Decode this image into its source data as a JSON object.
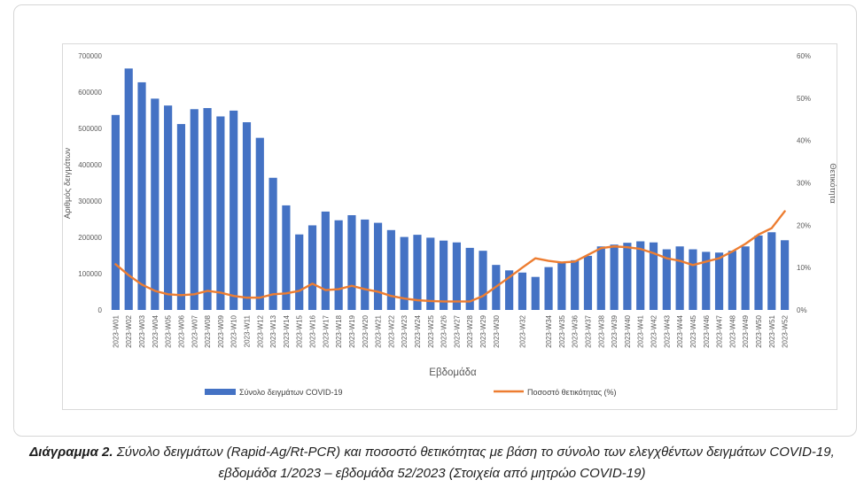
{
  "caption": {
    "label": "Διάγραμμα 2.",
    "text": "Σύνολο δειγμάτων (Rapid-Ag/Rt-PCR) και ποσοστό θετικότητας με βάση το σύνολο των ελεγχθέντων δειγμάτων COVID-19, εβδομάδα 1/2023 – εβδομάδα 52/2023 (Στοιχεία από μητρώο COVID-19)"
  },
  "chart_data": {
    "type": "bar",
    "title": "",
    "xlabel": "Εβδομάδα",
    "ylabel": "Αριθμός δειγμάτων",
    "y2label": "Θετικότητα",
    "ylim": [
      0,
      700000
    ],
    "yticks": [
      "0",
      "100000",
      "200000",
      "300000",
      "400000",
      "500000",
      "600000",
      "700000"
    ],
    "y2lim": [
      0,
      60
    ],
    "y2ticks": [
      "0%",
      "10%",
      "20%",
      "30%",
      "40%",
      "50%",
      "60%"
    ],
    "grid": false,
    "legend_position": "bottom",
    "categories": [
      "2023-W01",
      "2023-W02",
      "2023-W03",
      "2023-W04",
      "2023-W05",
      "2023-W06",
      "2023-W07",
      "2023-W08",
      "2023-W09",
      "2023-W10",
      "2023-W11",
      "2023-W12",
      "2023-W13",
      "2023-W14",
      "2023-W15",
      "2023-W16",
      "2023-W17",
      "2023-W18",
      "2023-W19",
      "2023-W20",
      "2023-W21",
      "2023-W22",
      "2023-W23",
      "2023-W24",
      "2023-W25",
      "2023-W26",
      "2023-W27",
      "2023-W28",
      "2023-W29",
      "2023-W30",
      "2023-W31",
      "2023-W32",
      "2023-W33",
      "2023-W34",
      "2023-W35",
      "2023-W36",
      "2023-W37",
      "2023-W38",
      "2023-W39",
      "2023-W40",
      "2023-W41",
      "2023-W42",
      "2023-W43",
      "2023-W44",
      "2023-W45",
      "2023-W46",
      "2023-W47",
      "2023-W48",
      "2023-W49",
      "2023-W50",
      "2023-W51",
      "2023-W52"
    ],
    "xticks": [
      "2023-W01",
      "2023-W02",
      "2023-W03",
      "2023-W04",
      "2023-W05",
      "2023-W06",
      "2023-W07",
      "2023-W08",
      "2023-W09",
      "2023-W10",
      "2023-W11",
      "2023-W12",
      "2023-W13",
      "2023-W14",
      "2023-W15",
      "2023-W16",
      "2023-W17",
      "2023-W18",
      "2023-W19",
      "2023-W20",
      "2023-W21",
      "2023-W22",
      "2023-W23",
      "2023-W24",
      "2023-W25",
      "2023-W26",
      "2023-W27",
      "2023-W28",
      "2023-W29",
      "2023-W30",
      "2023-W32",
      "2023-W34",
      "2023-W35",
      "2023-W36",
      "2023-W37",
      "2023-W38",
      "2023-W39",
      "2023-W40",
      "2023-W41",
      "2023-W42",
      "2023-W43",
      "2023-W44",
      "2023-W45",
      "2023-W46",
      "2023-W47",
      "2023-W48",
      "2023-W49",
      "2023-W50",
      "2023-W51",
      "2023-W52"
    ],
    "series": [
      {
        "name": "Σύνολο δειγμάτων COVID-19",
        "type": "bar",
        "axis": "left",
        "color": "#4472c4",
        "values": [
          537000,
          665000,
          627000,
          582000,
          563000,
          512000,
          553000,
          556000,
          533000,
          549000,
          517000,
          474000,
          364000,
          288000,
          208000,
          233000,
          271000,
          247000,
          261000,
          249000,
          240000,
          220000,
          201000,
          207000,
          199000,
          191000,
          186000,
          171000,
          163000,
          124000,
          109000,
          103000,
          91000,
          118000,
          133000,
          137000,
          149000,
          175000,
          180000,
          185000,
          189000,
          186000,
          167000,
          175000,
          167000,
          160000,
          158000,
          163000,
          175000,
          205000,
          214000,
          192000
        ]
      },
      {
        "name": "Ποσοστό θετικότητας (%)",
        "type": "line",
        "axis": "right",
        "color": "#ed7d31",
        "values": [
          10.8,
          8.2,
          6.0,
          4.5,
          3.7,
          3.5,
          3.7,
          4.5,
          4.1,
          3.3,
          2.9,
          2.9,
          3.7,
          3.9,
          4.5,
          6.2,
          4.7,
          4.9,
          5.7,
          4.9,
          4.3,
          3.3,
          2.7,
          2.3,
          2.1,
          2.0,
          2.0,
          2.0,
          3.3,
          5.5,
          7.7,
          10.0,
          12.2,
          11.6,
          11.2,
          11.4,
          13.0,
          14.6,
          15.0,
          14.8,
          14.4,
          13.4,
          12.2,
          11.6,
          10.6,
          11.4,
          12.2,
          13.8,
          15.6,
          17.8,
          19.3,
          23.3
        ]
      }
    ]
  }
}
